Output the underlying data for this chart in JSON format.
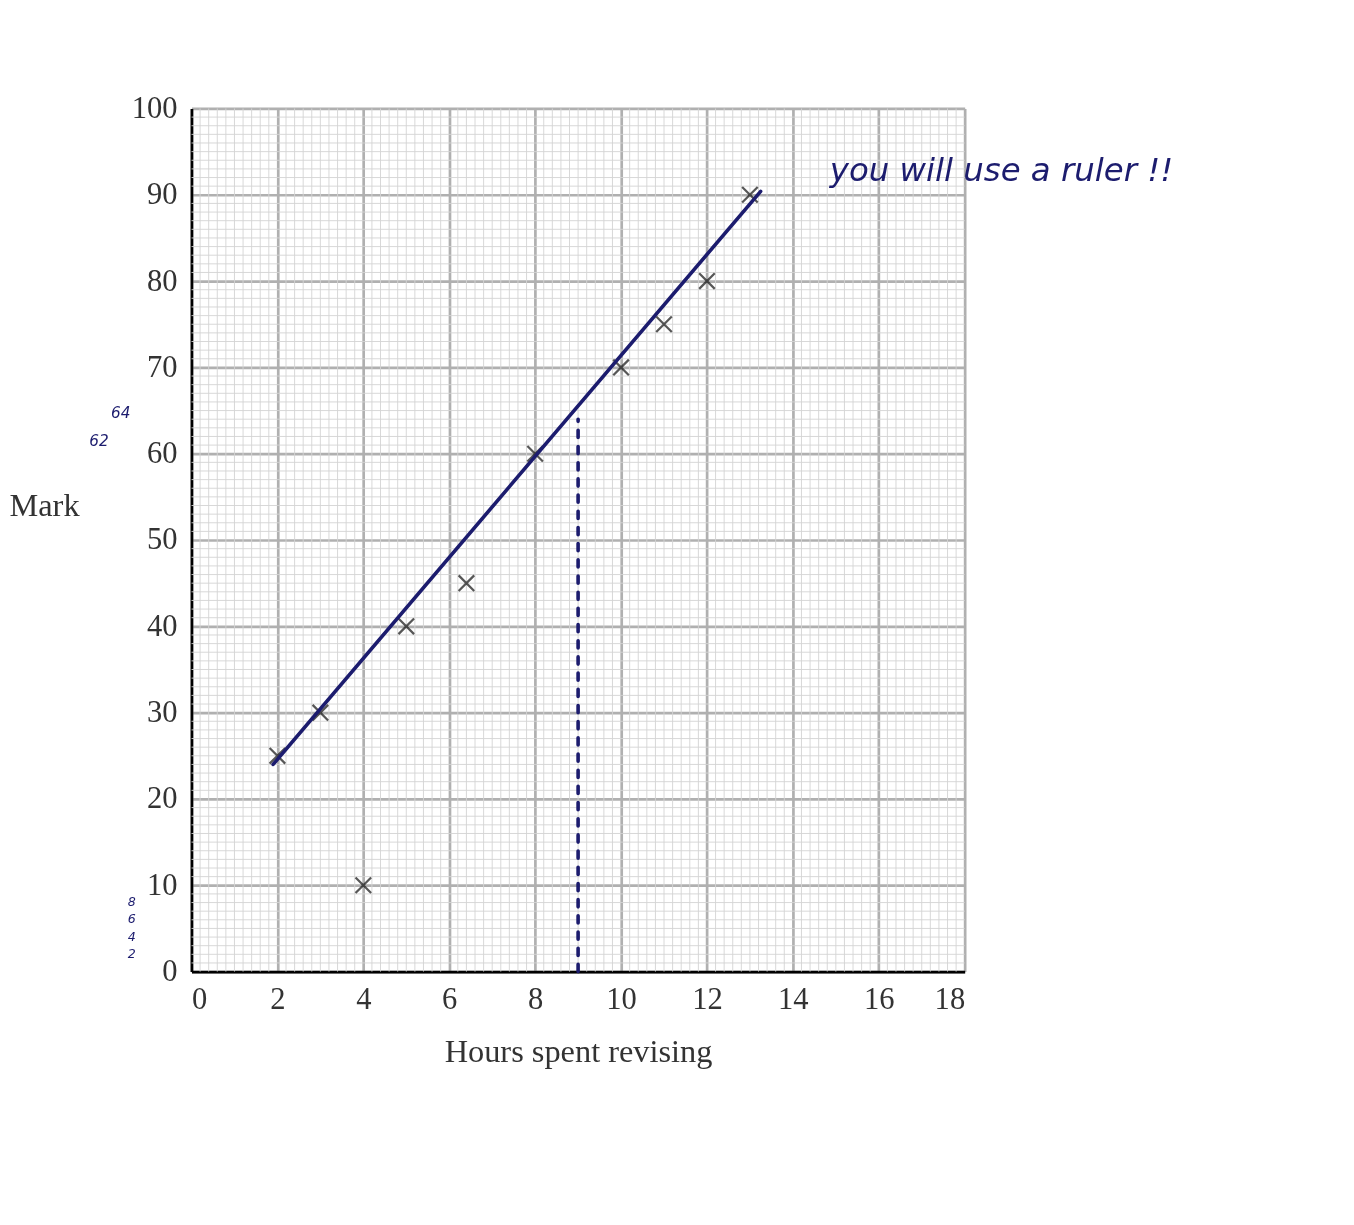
{
  "chart_data": {
    "type": "scatter",
    "xlabel": "Hours spent revising",
    "ylabel": "Mark",
    "xlim": [
      0,
      18
    ],
    "ylim": [
      0,
      100
    ],
    "xticks": [
      0,
      2,
      4,
      6,
      8,
      10,
      12,
      14,
      16,
      18
    ],
    "yticks": [
      0,
      10,
      20,
      30,
      40,
      50,
      60,
      70,
      80,
      90,
      100
    ],
    "grid": true,
    "series": [
      {
        "color": "#111111",
        "marker": "cross",
        "x": [
          2,
          3,
          4,
          5,
          6.4,
          8,
          10,
          11,
          12,
          13
        ],
        "values": [
          25,
          30,
          10,
          40,
          45,
          60,
          70,
          75,
          80,
          90
        ]
      },
      {
        "type": "line",
        "color": "#1c1c6e",
        "marker": "none",
        "x": [
          1.9,
          13.25
        ],
        "values": [
          24,
          90.4
        ],
        "line_style": "solid"
      },
      {
        "type": "line",
        "color": "#1c1c6e",
        "marker": "none",
        "x": [
          9,
          9
        ],
        "values": [
          0,
          64
        ],
        "line_style": "dashed"
      }
    ],
    "annotations": [
      "you will use a ruler !!",
      "64",
      "62",
      "8",
      "6",
      "4",
      "2"
    ]
  }
}
